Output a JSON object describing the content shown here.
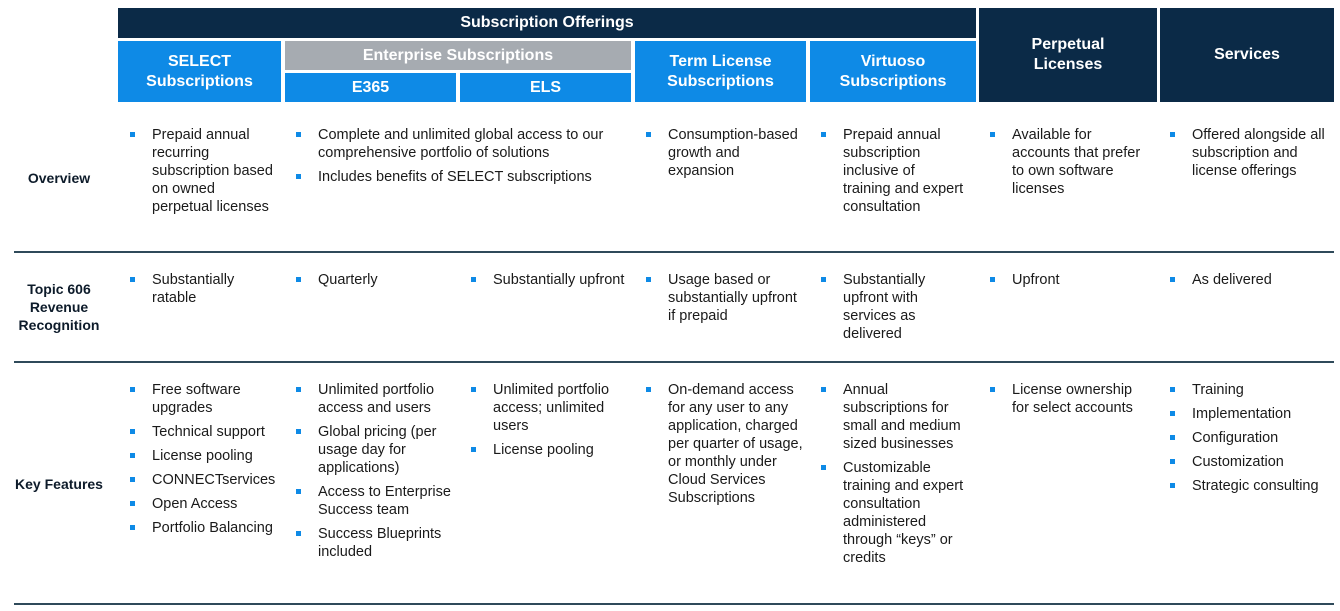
{
  "header": {
    "subscription_offerings": "Subscription Offerings",
    "select": "SELECT Subscriptions",
    "enterprise": "Enterprise Subscriptions",
    "e365": "E365",
    "els": "ELS",
    "term": "Term License Subscriptions",
    "virtuoso": "Virtuoso Subscriptions",
    "perpetual": "Perpetual Licenses",
    "services": "Services"
  },
  "rows": {
    "overview": {
      "label": "Overview",
      "select": [
        "Prepaid annual recurring subscription based on owned perpetual licenses"
      ],
      "enterprise": [
        "Complete and unlimited global access to our comprehensive portfolio of solutions",
        "Includes benefits of SELECT subscriptions"
      ],
      "term": [
        "Consumption-based growth and expansion"
      ],
      "virtuoso": [
        "Prepaid annual subscription inclusive of training and expert consultation"
      ],
      "perpetual": [
        "Available for accounts that prefer to own software licenses"
      ],
      "services": [
        "Offered alongside all subscription and license offerings"
      ]
    },
    "topic606": {
      "label": "Topic 606 Revenue Recognition",
      "select": [
        "Substantially ratable"
      ],
      "e365": [
        "Quarterly"
      ],
      "els": [
        "Substantially upfront"
      ],
      "term": [
        "Usage based or substantially upfront if prepaid"
      ],
      "virtuoso": [
        "Substantially upfront with services as delivered"
      ],
      "perpetual": [
        "Upfront"
      ],
      "services": [
        "As delivered"
      ]
    },
    "key_features": {
      "label": "Key Features",
      "select": [
        "Free software upgrades",
        "Technical support",
        "License pooling",
        "CONNECTservices",
        "Open Access",
        "Portfolio Balancing"
      ],
      "e365": [
        "Unlimited portfolio access and users",
        "Global pricing (per usage day for applications)",
        "Access to Enterprise Success team",
        "Success Blueprints included"
      ],
      "els": [
        "Unlimited portfolio access; unlimited users",
        "License pooling"
      ],
      "term": [
        "On-demand access for any user to any application, charged per quarter of usage, or monthly under Cloud Services Subscriptions"
      ],
      "virtuoso": [
        "Annual subscriptions for small and medium sized businesses",
        "Customizable training and expert consultation administered through “keys” or credits"
      ],
      "perpetual": [
        "License ownership for select accounts"
      ],
      "services": [
        "Training",
        "Implementation",
        "Configuration",
        "Customization",
        "Strategic consulting"
      ]
    }
  }
}
